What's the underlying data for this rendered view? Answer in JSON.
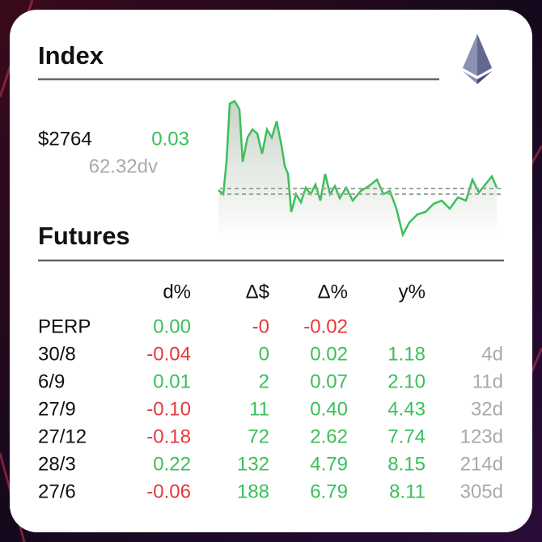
{
  "index": {
    "title": "Index",
    "price": "$2764",
    "change": "0.03",
    "volume": "62.32dv"
  },
  "futures": {
    "title": "Futures",
    "headers": [
      "d%",
      "Δ$",
      "Δ%",
      "y%"
    ],
    "rows": [
      [
        "PERP",
        "0.00",
        "-0",
        "-0.02"
      ],
      [
        "30/8",
        "-0.04",
        "0",
        "0.02",
        "1.18",
        "4d"
      ],
      [
        "6/9",
        "0.01",
        "2",
        "0.07",
        "2.10",
        "11d"
      ],
      [
        "27/9",
        "-0.10",
        "11",
        "0.40",
        "4.43",
        "32d"
      ],
      [
        "27/12",
        "-0.18",
        "72",
        "2.62",
        "7.74",
        "123d"
      ],
      [
        "28/3",
        "0.22",
        "132",
        "4.79",
        "8.15",
        "214d"
      ],
      [
        "27/6",
        "-0.06",
        "188",
        "6.79",
        "8.11",
        "305d"
      ]
    ]
  }
}
